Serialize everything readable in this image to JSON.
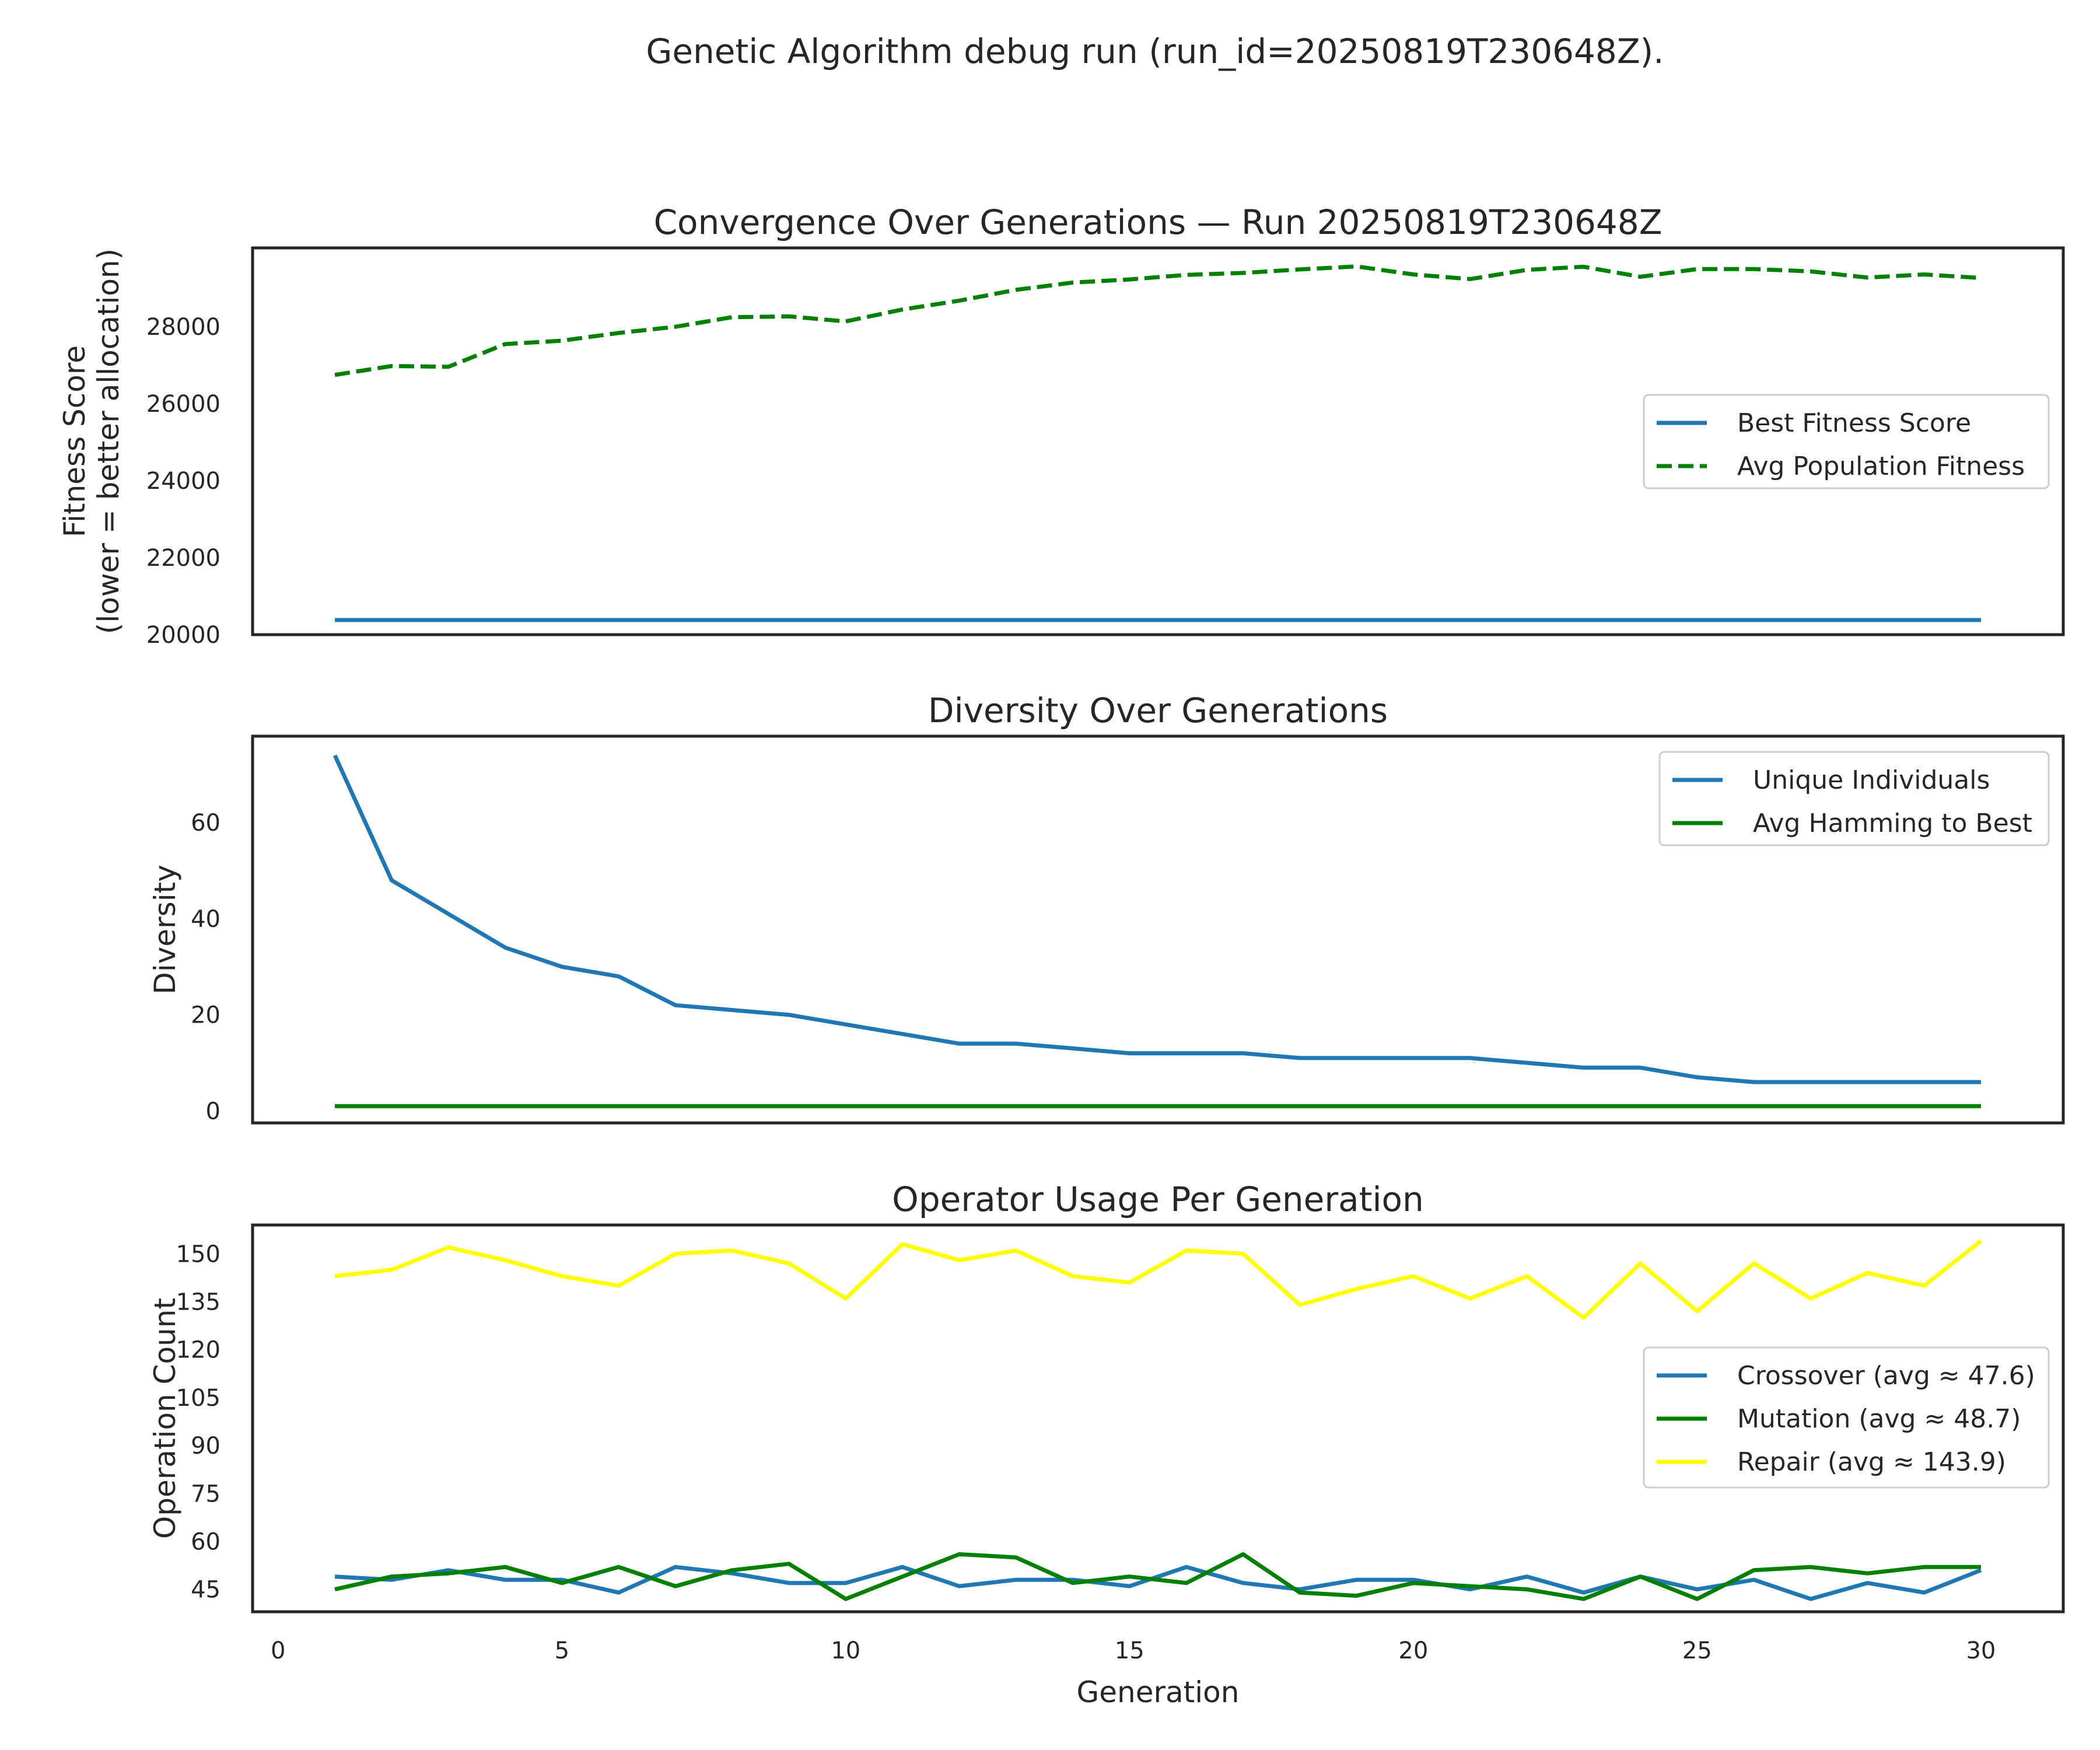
{
  "suptitle": "Genetic Algorithm debug run (run_id=20250819T230648Z).",
  "shared_xlabel": "Generation",
  "x_ticks": [
    0,
    5,
    10,
    15,
    20,
    25,
    30
  ],
  "chart_data": [
    {
      "type": "line",
      "title": "Convergence Over Generations — Run 20250819T230648Z",
      "ylabel": [
        "Fitness Score",
        "(lower = better allocation)"
      ],
      "xlim": [
        -0.45,
        31.45
      ],
      "ylim": [
        20000,
        30050
      ],
      "y_ticks": [
        20000,
        22000,
        24000,
        26000,
        28000
      ],
      "legend_position": "center-right",
      "x": [
        1,
        2,
        3,
        4,
        5,
        6,
        7,
        8,
        9,
        10,
        11,
        12,
        13,
        14,
        15,
        16,
        17,
        18,
        19,
        20,
        21,
        22,
        23,
        24,
        25,
        26,
        27,
        28,
        29,
        30
      ],
      "series": [
        {
          "name": "Best Fitness Score",
          "color": "#1f77b4",
          "dash": "solid",
          "values": [
            20380,
            20380,
            20380,
            20380,
            20380,
            20380,
            20380,
            20380,
            20380,
            20380,
            20380,
            20380,
            20380,
            20380,
            20380,
            20380,
            20380,
            20380,
            20380,
            20380,
            20380,
            20380,
            20380,
            20380,
            20380,
            20380,
            20380,
            20380,
            20380,
            20380
          ]
        },
        {
          "name": "Avg Population Fitness",
          "color": "#008000",
          "dash": "dashed",
          "values": [
            26750,
            26980,
            26960,
            27550,
            27640,
            27840,
            28000,
            28250,
            28270,
            28140,
            28450,
            28680,
            28960,
            29150,
            29230,
            29350,
            29400,
            29490,
            29570,
            29360,
            29240,
            29480,
            29560,
            29300,
            29500,
            29500,
            29440,
            29280,
            29360,
            29270
          ]
        }
      ]
    },
    {
      "type": "line",
      "title": "Diversity Over Generations",
      "ylabel": [
        "Diversity"
      ],
      "xlim": [
        -0.45,
        31.45
      ],
      "ylim": [
        -2.5,
        78
      ],
      "y_ticks": [
        0,
        20,
        40,
        60
      ],
      "legend_position": "upper-right",
      "x": [
        1,
        2,
        3,
        4,
        5,
        6,
        7,
        8,
        9,
        10,
        11,
        12,
        13,
        14,
        15,
        16,
        17,
        18,
        19,
        20,
        21,
        22,
        23,
        24,
        25,
        26,
        27,
        28,
        29,
        30
      ],
      "series": [
        {
          "name": "Unique Individuals",
          "color": "#1f77b4",
          "dash": "solid",
          "values": [
            74,
            48,
            41,
            34,
            30,
            28,
            22,
            21,
            20,
            18,
            16,
            14,
            14,
            13,
            12,
            12,
            12,
            11,
            11,
            11,
            11,
            10,
            9,
            9,
            7,
            6,
            6,
            6,
            6,
            6
          ]
        },
        {
          "name": "Avg Hamming to Best",
          "color": "#008000",
          "dash": "solid",
          "values": [
            1,
            1,
            1,
            1,
            1,
            1,
            1,
            1,
            1,
            1,
            1,
            1,
            1,
            1,
            1,
            1,
            1,
            1,
            1,
            1,
            1,
            1,
            1,
            1,
            1,
            1,
            1,
            1,
            1,
            1
          ]
        }
      ]
    },
    {
      "type": "line",
      "title": "Operator Usage Per Generation",
      "ylabel": [
        "Operation Count"
      ],
      "xlim": [
        -0.45,
        31.45
      ],
      "ylim": [
        38,
        159
      ],
      "y_ticks": [
        45,
        60,
        75,
        90,
        105,
        120,
        135,
        150
      ],
      "legend_position": "center-right",
      "x": [
        1,
        2,
        3,
        4,
        5,
        6,
        7,
        8,
        9,
        10,
        11,
        12,
        13,
        14,
        15,
        16,
        17,
        18,
        19,
        20,
        21,
        22,
        23,
        24,
        25,
        26,
        27,
        28,
        29,
        30
      ],
      "series": [
        {
          "name": "Crossover (avg ≈ 47.6)",
          "color": "#1f77b4",
          "dash": "solid",
          "values": [
            49,
            48,
            51,
            48,
            48,
            44,
            52,
            50,
            47,
            47,
            52,
            46,
            48,
            48,
            46,
            52,
            47,
            45,
            48,
            48,
            45,
            49,
            44,
            49,
            45,
            48,
            42,
            47,
            44,
            51
          ]
        },
        {
          "name": "Mutation (avg ≈ 48.7)",
          "color": "#008000",
          "dash": "solid",
          "values": [
            45,
            49,
            50,
            52,
            47,
            52,
            46,
            51,
            53,
            42,
            49,
            56,
            55,
            47,
            49,
            47,
            56,
            44,
            43,
            47,
            46,
            45,
            42,
            49,
            42,
            51,
            52,
            50,
            52,
            52
          ]
        },
        {
          "name": "Repair (avg ≈ 143.9)",
          "color": "#ffff00",
          "dash": "solid",
          "values": [
            143,
            145,
            152,
            148,
            143,
            140,
            150,
            151,
            147,
            136,
            153,
            148,
            151,
            143,
            141,
            151,
            150,
            134,
            139,
            143,
            136,
            143,
            130,
            147,
            132,
            147,
            136,
            144,
            140,
            154
          ]
        }
      ]
    }
  ]
}
